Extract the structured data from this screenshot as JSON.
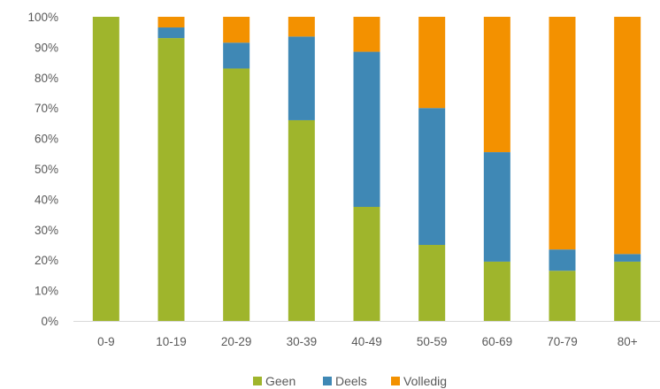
{
  "chart_data": {
    "type": "bar",
    "stacked": true,
    "categories": [
      "0-9",
      "10-19",
      "20-29",
      "30-39",
      "40-49",
      "50-59",
      "60-69",
      "70-79",
      "80+"
    ],
    "series": [
      {
        "name": "Geen",
        "color": "#9fb52c",
        "values": [
          100,
          93,
          83,
          66,
          37.5,
          25,
          19.5,
          16.5,
          19.5
        ]
      },
      {
        "name": "Deels",
        "color": "#3f88b5",
        "values": [
          0,
          3.5,
          8.5,
          27.5,
          51,
          45,
          36,
          7,
          2.5
        ]
      },
      {
        "name": "Volledig",
        "color": "#f39100",
        "values": [
          0,
          3.5,
          8.5,
          6.5,
          11.5,
          30,
          44.5,
          76.5,
          78
        ]
      }
    ],
    "ylim": [
      0,
      100
    ],
    "yticks": [
      "0%",
      "10%",
      "20%",
      "30%",
      "40%",
      "50%",
      "60%",
      "70%",
      "80%",
      "90%",
      "100%"
    ],
    "grid": false,
    "legend_position": "bottom"
  }
}
